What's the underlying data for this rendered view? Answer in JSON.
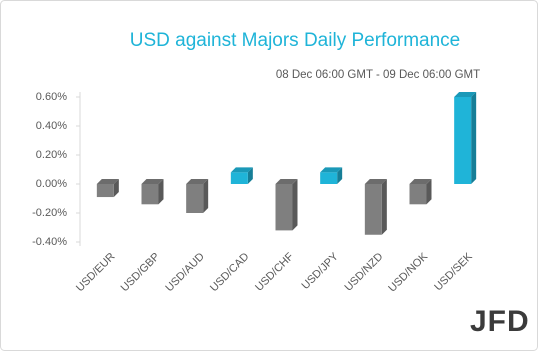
{
  "chart_data": {
    "type": "bar",
    "title": "USD against Majors Daily Performance",
    "subtitle": "08 Dec 06:00 GMT -  09 Dec  06:00 GMT",
    "logo": "JFD",
    "categories": [
      "USD/EUR",
      "USD/GBP",
      "USD/AUD",
      "USD/CAD",
      "USD/CHF",
      "USD/JPY",
      "USD/NZD",
      "USD/NOK",
      "USD/SEK"
    ],
    "values": [
      -0.09,
      -0.14,
      -0.2,
      0.08,
      -0.32,
      0.08,
      -0.35,
      -0.14,
      0.6
    ],
    "positive_color": "#1fb4d8",
    "negative_color": "#7f7f7f",
    "ylim": [
      -0.4,
      0.6
    ],
    "yticks": [
      {
        "value": -0.4,
        "label": "-0.40%"
      },
      {
        "value": -0.2,
        "label": "-0.20%"
      },
      {
        "value": 0,
        "label": "0.00%"
      },
      {
        "value": 0.2,
        "label": "0.20%"
      },
      {
        "value": 0.4,
        "label": "0.40%"
      },
      {
        "value": 0.6,
        "label": "0.60%"
      }
    ],
    "grid": false
  }
}
